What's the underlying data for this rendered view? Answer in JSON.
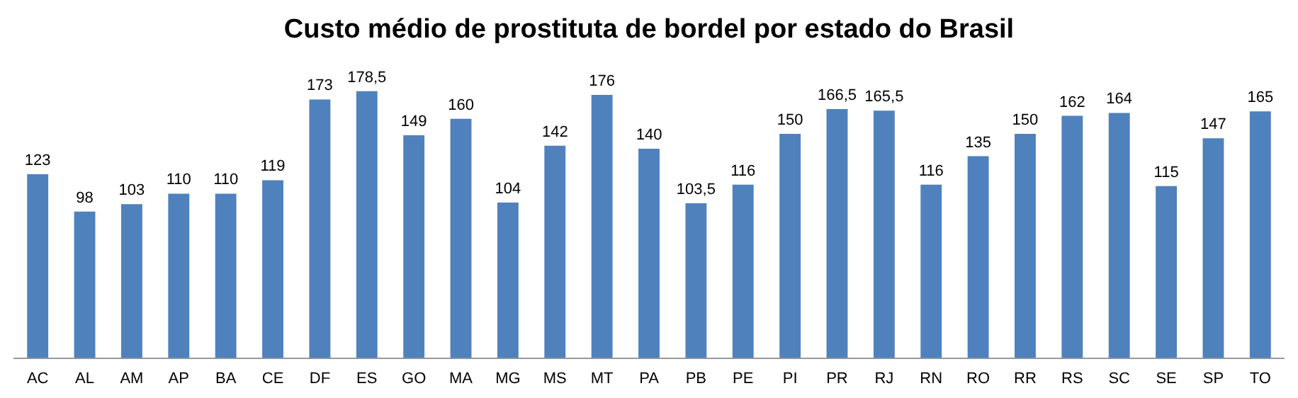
{
  "chart_data": {
    "type": "bar",
    "title": "Custo médio de prostituta de bordel por estado do Brasil",
    "categories": [
      "AC",
      "AL",
      "AM",
      "AP",
      "BA",
      "CE",
      "DF",
      "ES",
      "GO",
      "MA",
      "MG",
      "MS",
      "MT",
      "PA",
      "PB",
      "PE",
      "PI",
      "PR",
      "RJ",
      "RN",
      "RO",
      "RR",
      "RS",
      "SC",
      "SE",
      "SP",
      "TO"
    ],
    "values": [
      123,
      98,
      103,
      110,
      110,
      119,
      173,
      178.5,
      149,
      160,
      104,
      142,
      176,
      140,
      103.5,
      116,
      150,
      166.5,
      165.5,
      116,
      135,
      150,
      162,
      164,
      115,
      147,
      165
    ],
    "value_labels": [
      "123",
      "98",
      "103",
      "110",
      "110",
      "119",
      "173",
      "178,5",
      "149",
      "160",
      "104",
      "142",
      "176",
      "140",
      "103,5",
      "116",
      "150",
      "166,5",
      "165,5",
      "116",
      "135",
      "150",
      "162",
      "164",
      "115",
      "147",
      "165"
    ],
    "color": "#4f81bd",
    "grid": false,
    "legend": false
  }
}
